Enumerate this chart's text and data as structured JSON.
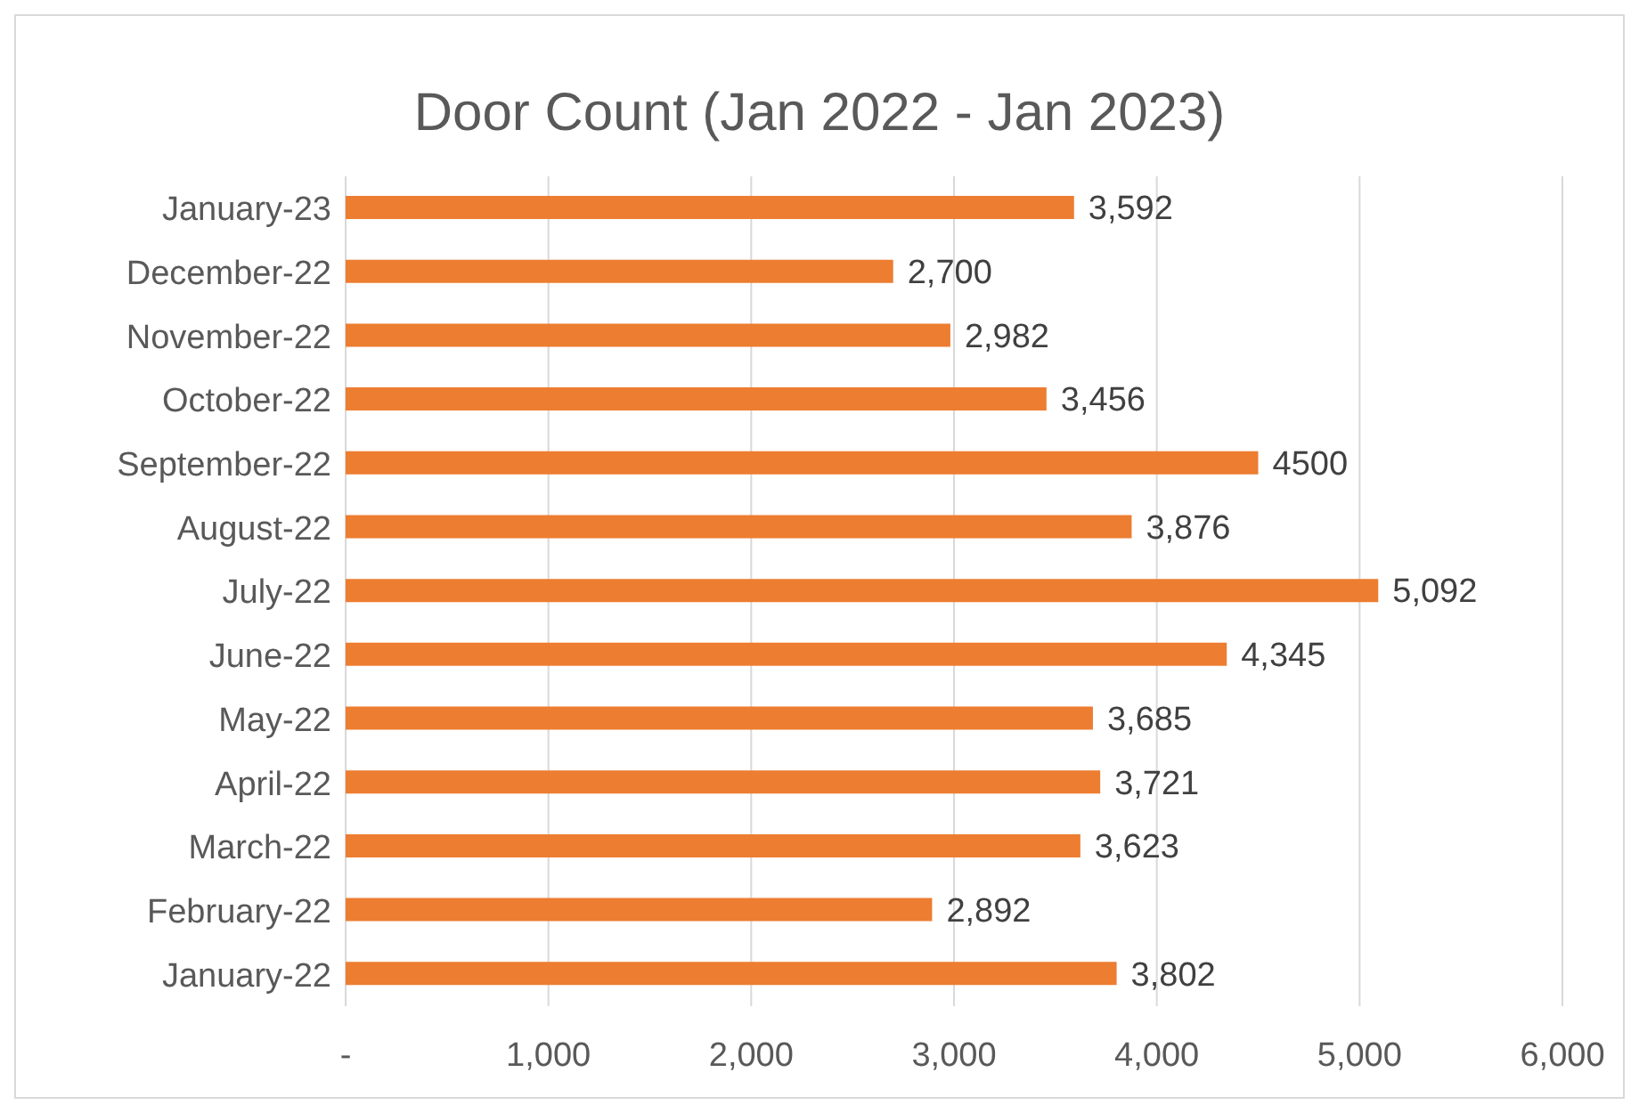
{
  "chart_data": {
    "type": "bar",
    "orientation": "horizontal",
    "title": "Door Count (Jan 2022 - Jan 2023)",
    "categories": [
      "January-23",
      "December-22",
      "November-22",
      "October-22",
      "September-22",
      "August-22",
      "July-22",
      "June-22",
      "May-22",
      "April-22",
      "March-22",
      "February-22",
      "January-22"
    ],
    "values": [
      3592,
      2700,
      2982,
      3456,
      4500,
      3876,
      5092,
      4345,
      3685,
      3721,
      3623,
      2892,
      3802
    ],
    "value_labels": [
      "3,592",
      "2,700",
      "2,982",
      "3,456",
      "4500",
      "3,876",
      "5,092",
      "4,345",
      "3,685",
      "3,721",
      "3,623",
      "2,892",
      "3,802"
    ],
    "color": "#ed7d31",
    "xlim": [
      0,
      6000
    ],
    "xticks": [
      {
        "value": 0,
        "label": "-"
      },
      {
        "value": 1000,
        "label": "1,000"
      },
      {
        "value": 2000,
        "label": "2,000"
      },
      {
        "value": 3000,
        "label": "3,000"
      },
      {
        "value": 4000,
        "label": "4,000"
      },
      {
        "value": 5000,
        "label": "5,000"
      },
      {
        "value": 6000,
        "label": "6,000"
      }
    ],
    "grid": "x",
    "legend": false
  }
}
